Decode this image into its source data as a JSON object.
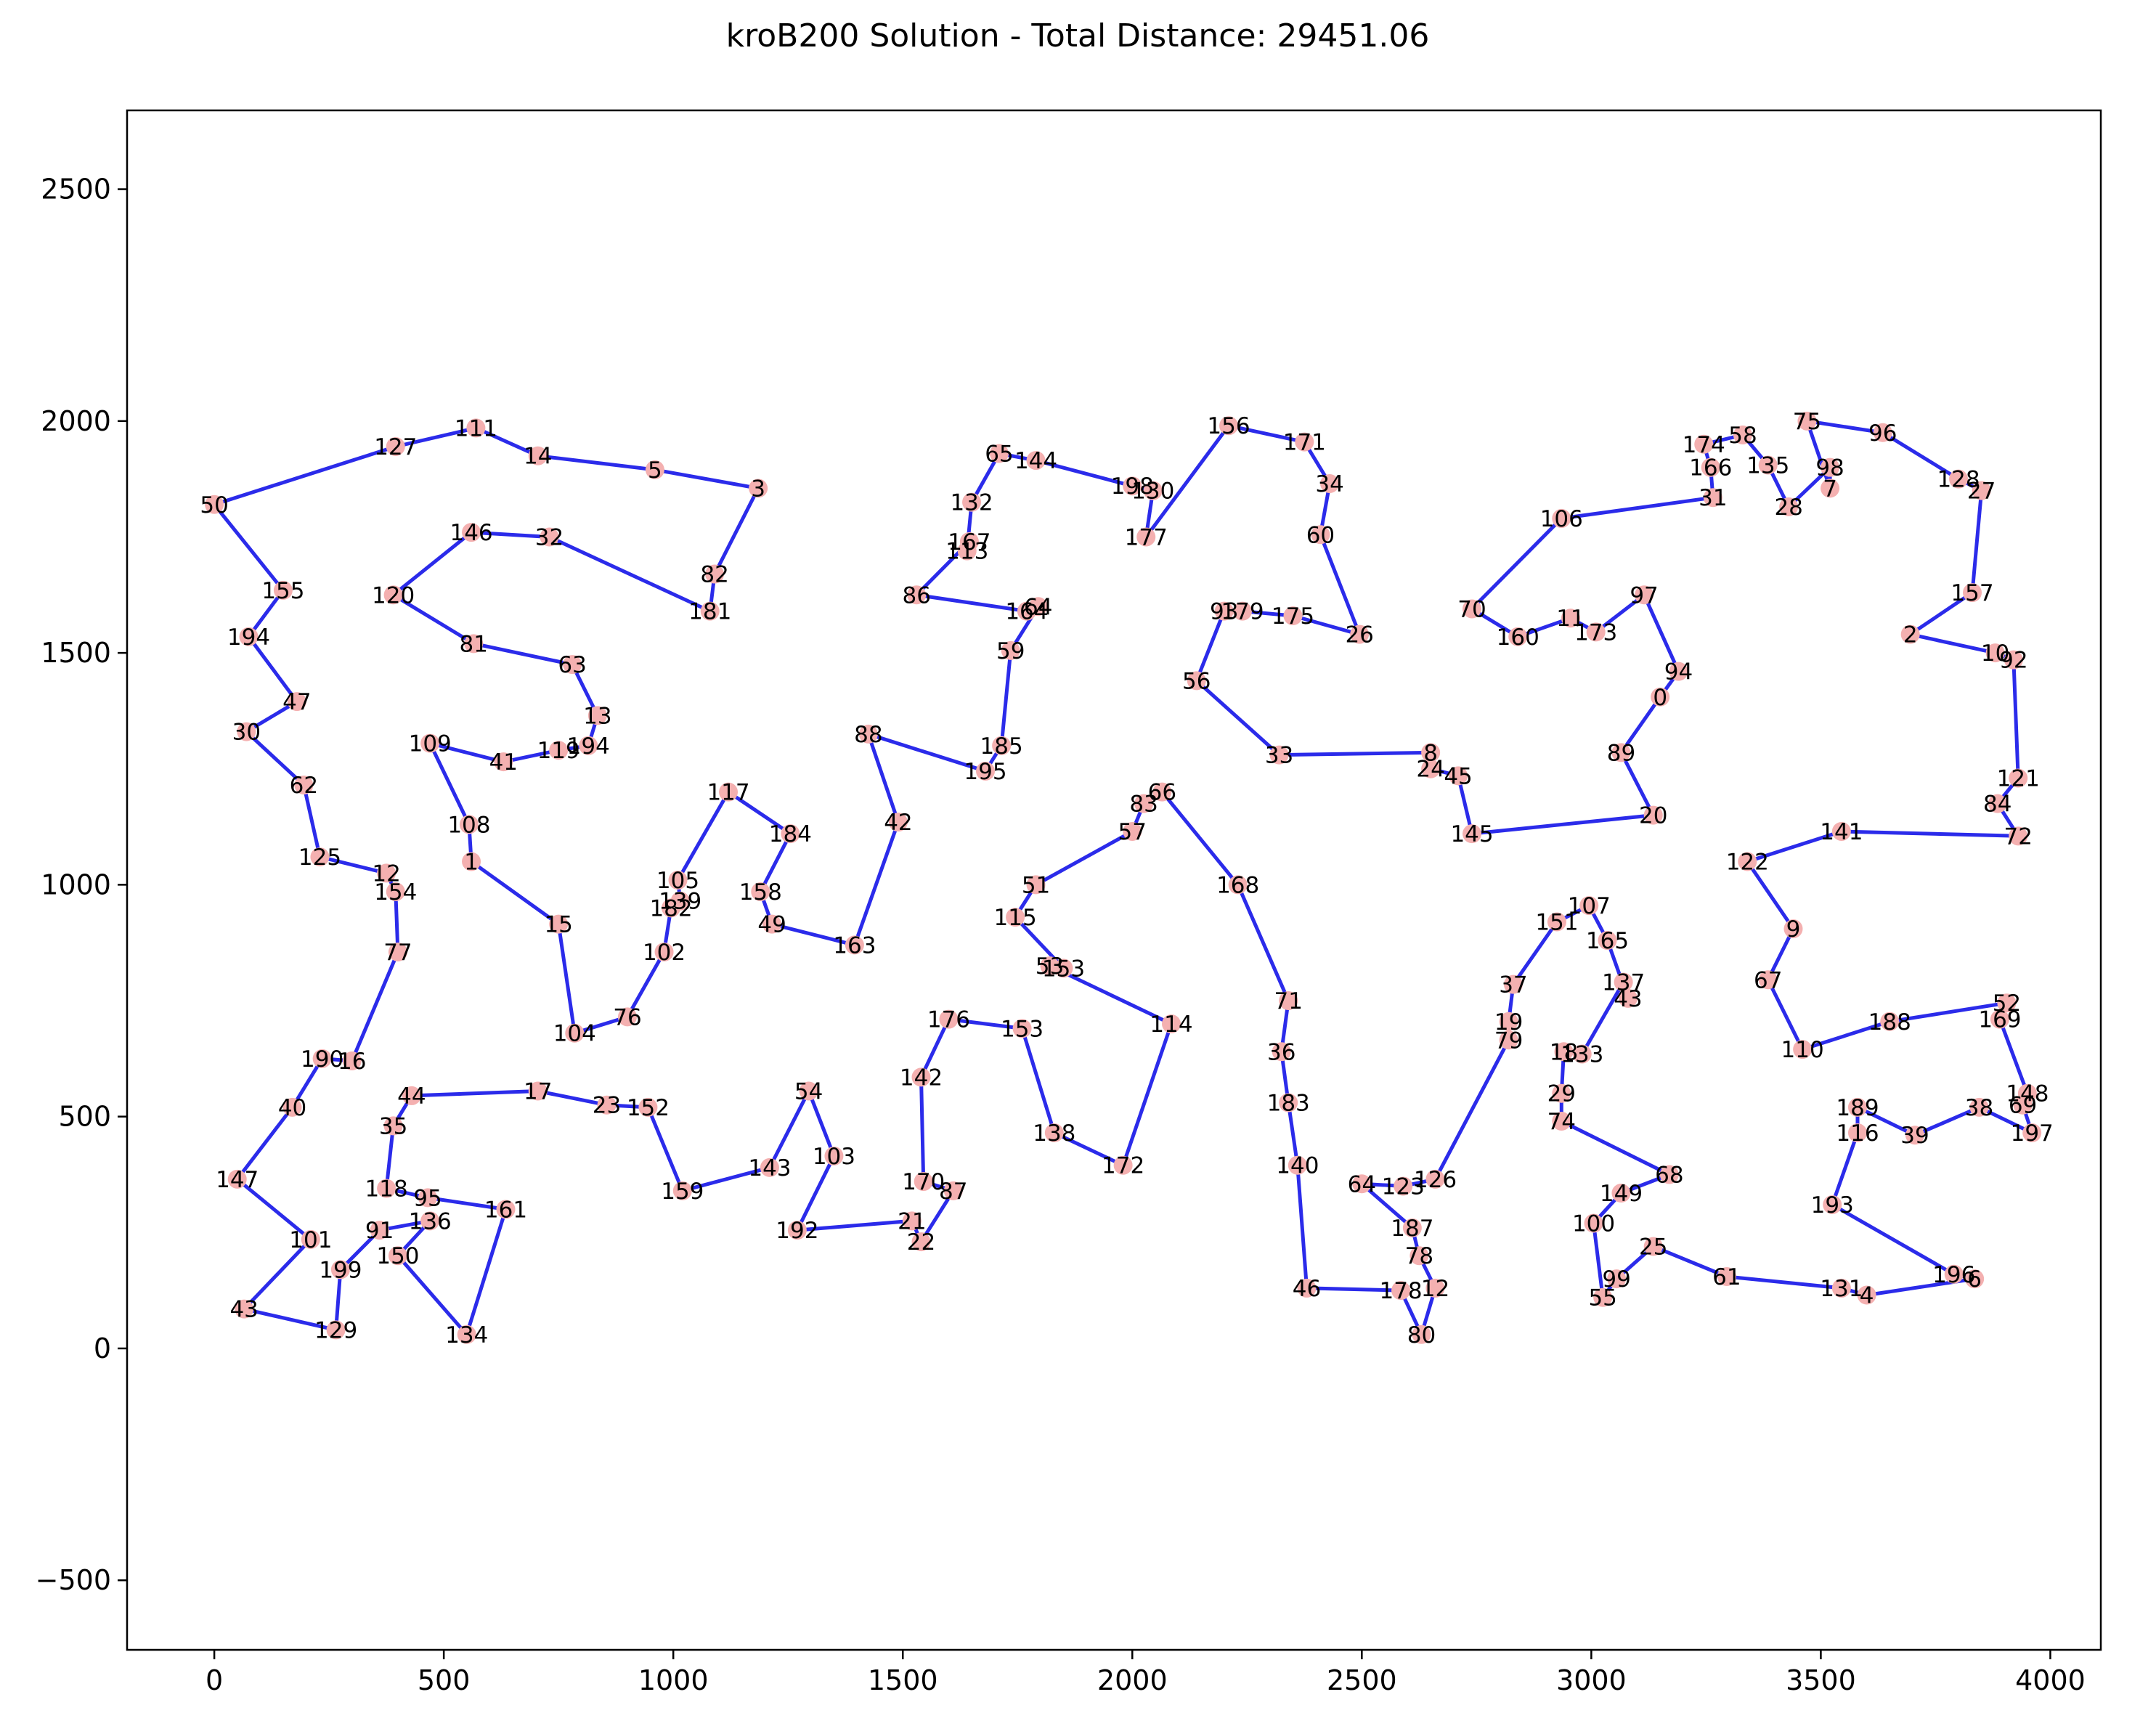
{
  "chart_data": {
    "type": "scatter",
    "title": "kroB200 Solution - Total Distance: 29451.06",
    "xlabel": "",
    "ylabel": "",
    "xlim": [
      -190,
      4110
    ],
    "ylim": [
      -650,
      2670
    ],
    "xticks": [
      0,
      500,
      1000,
      1500,
      2000,
      2500,
      3000,
      3500,
      4000
    ],
    "yticks": [
      -500,
      0,
      500,
      1000,
      1500,
      2000,
      2500
    ],
    "grid": false,
    "colors": {
      "route": "#2b2bea",
      "node": "#f4b0b0",
      "text": "#000000"
    },
    "points": [
      {
        "label": "50",
        "x": 0,
        "y": 1820
      },
      {
        "label": "127",
        "x": 395,
        "y": 1945
      },
      {
        "label": "111",
        "x": 570,
        "y": 1985
      },
      {
        "label": "14",
        "x": 705,
        "y": 1925
      },
      {
        "label": "5",
        "x": 960,
        "y": 1895
      },
      {
        "label": "3",
        "x": 1185,
        "y": 1855
      },
      {
        "label": "82",
        "x": 1090,
        "y": 1670
      },
      {
        "label": "181",
        "x": 1080,
        "y": 1590
      },
      {
        "label": "32",
        "x": 730,
        "y": 1750
      },
      {
        "label": "146",
        "x": 560,
        "y": 1760
      },
      {
        "label": "120",
        "x": 390,
        "y": 1625
      },
      {
        "label": "81",
        "x": 565,
        "y": 1520
      },
      {
        "label": "63",
        "x": 780,
        "y": 1475
      },
      {
        "label": "13",
        "x": 835,
        "y": 1365
      },
      {
        "label": "194",
        "x": 815,
        "y": 1300
      },
      {
        "label": "119",
        "x": 750,
        "y": 1290
      },
      {
        "label": "41",
        "x": 630,
        "y": 1265
      },
      {
        "label": "109",
        "x": 470,
        "y": 1305
      },
      {
        "label": "108",
        "x": 555,
        "y": 1130
      },
      {
        "label": "1",
        "x": 560,
        "y": 1050
      },
      {
        "label": "15",
        "x": 750,
        "y": 915
      },
      {
        "label": "104",
        "x": 785,
        "y": 680
      },
      {
        "label": "76",
        "x": 900,
        "y": 715
      },
      {
        "label": "102",
        "x": 980,
        "y": 855
      },
      {
        "label": "182",
        "x": 995,
        "y": 950
      },
      {
        "label": "139",
        "x": 1015,
        "y": 965
      },
      {
        "label": "105",
        "x": 1010,
        "y": 1010
      },
      {
        "label": "117",
        "x": 1120,
        "y": 1200
      },
      {
        "label": "184",
        "x": 1255,
        "y": 1110
      },
      {
        "label": "158",
        "x": 1190,
        "y": 985
      },
      {
        "label": "49",
        "x": 1215,
        "y": 915
      },
      {
        "label": "163",
        "x": 1395,
        "y": 870
      },
      {
        "label": "42",
        "x": 1490,
        "y": 1135
      },
      {
        "label": "88",
        "x": 1425,
        "y": 1325
      },
      {
        "label": "195",
        "x": 1680,
        "y": 1245
      },
      {
        "label": "185",
        "x": 1715,
        "y": 1300
      },
      {
        "label": "59",
        "x": 1735,
        "y": 1505
      },
      {
        "label": "64",
        "x": 1795,
        "y": 1600
      },
      {
        "label": "164",
        "x": 1770,
        "y": 1590
      },
      {
        "label": "86",
        "x": 1530,
        "y": 1625
      },
      {
        "label": "167",
        "x": 1645,
        "y": 1740
      },
      {
        "label": "113",
        "x": 1640,
        "y": 1720
      },
      {
        "label": "132",
        "x": 1650,
        "y": 1825
      },
      {
        "label": "65",
        "x": 1710,
        "y": 1930
      },
      {
        "label": "144",
        "x": 1790,
        "y": 1915
      },
      {
        "label": "198",
        "x": 2000,
        "y": 1860
      },
      {
        "label": "130",
        "x": 2045,
        "y": 1850
      },
      {
        "label": "177",
        "x": 2030,
        "y": 1750
      },
      {
        "label": "156",
        "x": 2210,
        "y": 1990
      },
      {
        "label": "171",
        "x": 2375,
        "y": 1955
      },
      {
        "label": "34",
        "x": 2430,
        "y": 1865
      },
      {
        "label": "60",
        "x": 2410,
        "y": 1755
      },
      {
        "label": "26",
        "x": 2495,
        "y": 1540
      },
      {
        "label": "175",
        "x": 2350,
        "y": 1580
      },
      {
        "label": "179",
        "x": 2240,
        "y": 1590
      },
      {
        "label": "93",
        "x": 2200,
        "y": 1590
      },
      {
        "label": "56",
        "x": 2140,
        "y": 1440
      },
      {
        "label": "33",
        "x": 2320,
        "y": 1280
      },
      {
        "label": "8",
        "x": 2650,
        "y": 1285
      },
      {
        "label": "24",
        "x": 2650,
        "y": 1250
      },
      {
        "label": "45",
        "x": 2710,
        "y": 1235
      },
      {
        "label": "145",
        "x": 2740,
        "y": 1110
      },
      {
        "label": "20",
        "x": 3135,
        "y": 1150
      },
      {
        "label": "89",
        "x": 3065,
        "y": 1285
      },
      {
        "label": "0",
        "x": 3150,
        "y": 1405
      },
      {
        "label": "94",
        "x": 3190,
        "y": 1460
      },
      {
        "label": "97",
        "x": 3115,
        "y": 1625
      },
      {
        "label": "173",
        "x": 3010,
        "y": 1545
      },
      {
        "label": "11",
        "x": 2955,
        "y": 1575
      },
      {
        "label": "160",
        "x": 2840,
        "y": 1535
      },
      {
        "label": "70",
        "x": 2740,
        "y": 1595
      },
      {
        "label": "106",
        "x": 2935,
        "y": 1790
      },
      {
        "label": "31",
        "x": 3265,
        "y": 1835
      },
      {
        "label": "166",
        "x": 3260,
        "y": 1900
      },
      {
        "label": "174",
        "x": 3245,
        "y": 1950
      },
      {
        "label": "58",
        "x": 3330,
        "y": 1970
      },
      {
        "label": "135",
        "x": 3385,
        "y": 1905
      },
      {
        "label": "28",
        "x": 3430,
        "y": 1815
      },
      {
        "label": "98",
        "x": 3520,
        "y": 1900
      },
      {
        "label": "7",
        "x": 3520,
        "y": 1855
      },
      {
        "label": "75",
        "x": 3470,
        "y": 2000
      },
      {
        "label": "96",
        "x": 3635,
        "y": 1975
      },
      {
        "label": "128",
        "x": 3800,
        "y": 1875
      },
      {
        "label": "27",
        "x": 3850,
        "y": 1850
      },
      {
        "label": "157",
        "x": 3830,
        "y": 1630
      },
      {
        "label": "2",
        "x": 3695,
        "y": 1540
      },
      {
        "label": "10",
        "x": 3880,
        "y": 1500
      },
      {
        "label": "92",
        "x": 3920,
        "y": 1485
      },
      {
        "label": "121",
        "x": 3930,
        "y": 1230
      },
      {
        "label": "84",
        "x": 3885,
        "y": 1175
      },
      {
        "label": "72",
        "x": 3930,
        "y": 1105
      },
      {
        "label": "141",
        "x": 3545,
        "y": 1115
      },
      {
        "label": "122",
        "x": 3340,
        "y": 1050
      },
      {
        "label": "9",
        "x": 3440,
        "y": 905
      },
      {
        "label": "67",
        "x": 3385,
        "y": 795
      },
      {
        "label": "110",
        "x": 3460,
        "y": 645
      },
      {
        "label": "188",
        "x": 3650,
        "y": 705
      },
      {
        "label": "52",
        "x": 3905,
        "y": 745
      },
      {
        "label": "169",
        "x": 3890,
        "y": 710
      },
      {
        "label": "148",
        "x": 3950,
        "y": 550
      },
      {
        "label": "69",
        "x": 3940,
        "y": 525
      },
      {
        "label": "197",
        "x": 3960,
        "y": 465
      },
      {
        "label": "38",
        "x": 3845,
        "y": 520
      },
      {
        "label": "39",
        "x": 3705,
        "y": 460
      },
      {
        "label": "189",
        "x": 3580,
        "y": 520
      },
      {
        "label": "116",
        "x": 3580,
        "y": 465
      },
      {
        "label": "193",
        "x": 3525,
        "y": 310
      },
      {
        "label": "196",
        "x": 3790,
        "y": 160
      },
      {
        "label": "6",
        "x": 3835,
        "y": 150
      },
      {
        "label": "4",
        "x": 3600,
        "y": 115
      },
      {
        "label": "131",
        "x": 3545,
        "y": 130
      },
      {
        "label": "61",
        "x": 3295,
        "y": 155
      },
      {
        "label": "25",
        "x": 3135,
        "y": 220
      },
      {
        "label": "99",
        "x": 3055,
        "y": 150
      },
      {
        "label": "55",
        "x": 3025,
        "y": 110
      },
      {
        "label": "100",
        "x": 3005,
        "y": 270
      },
      {
        "label": "149",
        "x": 3065,
        "y": 335
      },
      {
        "label": "68",
        "x": 3170,
        "y": 375
      },
      {
        "label": "74",
        "x": 2935,
        "y": 490
      },
      {
        "label": "29",
        "x": 2935,
        "y": 550
      },
      {
        "label": "18",
        "x": 2940,
        "y": 640
      },
      {
        "label": "133",
        "x": 2980,
        "y": 635
      },
      {
        "label": "137",
        "x": 3070,
        "y": 790
      },
      {
        "label": "43",
        "x": 3080,
        "y": 755
      },
      {
        "label": "165",
        "x": 3035,
        "y": 880
      },
      {
        "label": "107",
        "x": 2995,
        "y": 955
      },
      {
        "label": "151",
        "x": 2925,
        "y": 920
      },
      {
        "label": "37",
        "x": 2830,
        "y": 785
      },
      {
        "label": "19",
        "x": 2820,
        "y": 705
      },
      {
        "label": "79",
        "x": 2820,
        "y": 665
      },
      {
        "label": "126",
        "x": 2660,
        "y": 365
      },
      {
        "label": "123",
        "x": 2590,
        "y": 350
      },
      {
        "label": "64",
        "x": 2500,
        "y": 355
      },
      {
        "label": "187",
        "x": 2610,
        "y": 260
      },
      {
        "label": "78",
        "x": 2625,
        "y": 200
      },
      {
        "label": "12",
        "x": 2660,
        "y": 130
      },
      {
        "label": "80",
        "x": 2630,
        "y": 30
      },
      {
        "label": "178",
        "x": 2585,
        "y": 125
      },
      {
        "label": "46",
        "x": 2380,
        "y": 130
      },
      {
        "label": "140",
        "x": 2360,
        "y": 395
      },
      {
        "label": "183",
        "x": 2340,
        "y": 530
      },
      {
        "label": "36",
        "x": 2325,
        "y": 640
      },
      {
        "label": "71",
        "x": 2340,
        "y": 750
      },
      {
        "label": "168",
        "x": 2230,
        "y": 1000
      },
      {
        "label": "66",
        "x": 2065,
        "y": 1200
      },
      {
        "label": "83",
        "x": 2025,
        "y": 1175
      },
      {
        "label": "57",
        "x": 2000,
        "y": 1115
      },
      {
        "label": "51",
        "x": 1790,
        "y": 1000
      },
      {
        "label": "115",
        "x": 1745,
        "y": 930
      },
      {
        "label": "153",
        "x": 1850,
        "y": 820
      },
      {
        "label": "53",
        "x": 1820,
        "y": 825
      },
      {
        "label": "114",
        "x": 2085,
        "y": 700
      },
      {
        "label": "172",
        "x": 1980,
        "y": 395
      },
      {
        "label": "138",
        "x": 1830,
        "y": 465
      },
      {
        "label": "153",
        "x": 1760,
        "y": 690
      },
      {
        "label": "176",
        "x": 1600,
        "y": 710
      },
      {
        "label": "142",
        "x": 1540,
        "y": 585
      },
      {
        "label": "170",
        "x": 1545,
        "y": 360
      },
      {
        "label": "87",
        "x": 1610,
        "y": 340
      },
      {
        "label": "22",
        "x": 1540,
        "y": 230
      },
      {
        "label": "21",
        "x": 1520,
        "y": 275
      },
      {
        "label": "192",
        "x": 1270,
        "y": 255
      },
      {
        "label": "103",
        "x": 1350,
        "y": 415
      },
      {
        "label": "54",
        "x": 1295,
        "y": 555
      },
      {
        "label": "143",
        "x": 1210,
        "y": 390
      },
      {
        "label": "159",
        "x": 1020,
        "y": 340
      },
      {
        "label": "152",
        "x": 945,
        "y": 520
      },
      {
        "label": "23",
        "x": 855,
        "y": 525
      },
      {
        "label": "17",
        "x": 705,
        "y": 555
      },
      {
        "label": "44",
        "x": 430,
        "y": 545
      },
      {
        "label": "35",
        "x": 390,
        "y": 480
      },
      {
        "label": "118",
        "x": 375,
        "y": 345
      },
      {
        "label": "95",
        "x": 465,
        "y": 325
      },
      {
        "label": "161",
        "x": 635,
        "y": 300
      },
      {
        "label": "134",
        "x": 550,
        "y": 30
      },
      {
        "label": "150",
        "x": 400,
        "y": 200
      },
      {
        "label": "136",
        "x": 470,
        "y": 275
      },
      {
        "label": "91",
        "x": 360,
        "y": 255
      },
      {
        "label": "199",
        "x": 275,
        "y": 170
      },
      {
        "label": "129",
        "x": 265,
        "y": 40
      },
      {
        "label": "43",
        "x": 65,
        "y": 85
      },
      {
        "label": "101",
        "x": 210,
        "y": 235
      },
      {
        "label": "147",
        "x": 50,
        "y": 365
      },
      {
        "label": "40",
        "x": 170,
        "y": 520
      },
      {
        "label": "190",
        "x": 235,
        "y": 625
      },
      {
        "label": "16",
        "x": 300,
        "y": 620
      },
      {
        "label": "77",
        "x": 400,
        "y": 855
      },
      {
        "label": "154",
        "x": 395,
        "y": 985
      },
      {
        "label": "12",
        "x": 375,
        "y": 1025
      },
      {
        "label": "125",
        "x": 230,
        "y": 1060
      },
      {
        "label": "62",
        "x": 195,
        "y": 1215
      },
      {
        "label": "30",
        "x": 70,
        "y": 1330
      },
      {
        "label": "47",
        "x": 180,
        "y": 1395
      },
      {
        "label": "194",
        "x": 75,
        "y": 1535
      },
      {
        "label": "155",
        "x": 150,
        "y": 1635
      }
    ]
  }
}
